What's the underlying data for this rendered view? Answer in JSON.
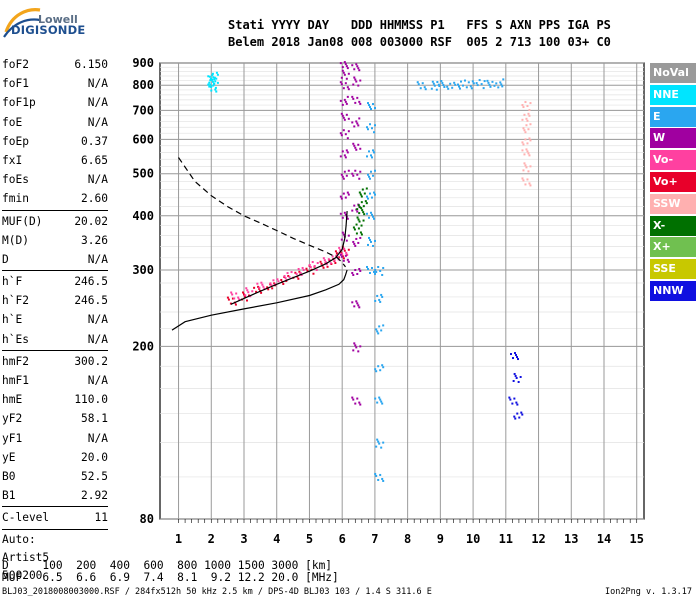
{
  "logo": {
    "brand": "Lowell",
    "product": "DIGISONDE"
  },
  "header": {
    "line1": "Stati YYYY DAY   DDD HHMMSS P1   FFS S AXN PPS IGA PS",
    "line2": "Belem 2018 Jan08 008 003000 RSF  005 2 713 100 03+ C0"
  },
  "params": {
    "group1": [
      {
        "k": "foF2",
        "v": "6.150"
      },
      {
        "k": "foF1",
        "v": "N/A"
      },
      {
        "k": "foF1p",
        "v": "N/A"
      },
      {
        "k": "foE",
        "v": "N/A"
      },
      {
        "k": "foEp",
        "v": "0.37"
      },
      {
        "k": "fxI",
        "v": "6.65"
      },
      {
        "k": "foEs",
        "v": "N/A"
      },
      {
        "k": "fmin",
        "v": "2.60"
      }
    ],
    "group2": [
      {
        "k": "MUF(D)",
        "v": "20.02"
      },
      {
        "k": "M(D)",
        "v": "3.26"
      },
      {
        "k": "D",
        "v": "N/A"
      }
    ],
    "group3": [
      {
        "k": "h`F",
        "v": "246.5"
      },
      {
        "k": "h`F2",
        "v": "246.5"
      },
      {
        "k": "h`E",
        "v": "N/A"
      },
      {
        "k": "h`Es",
        "v": "N/A"
      }
    ],
    "group4": [
      {
        "k": "hmF2",
        "v": "300.2"
      },
      {
        "k": "hmF1",
        "v": "N/A"
      },
      {
        "k": "hmE",
        "v": "110.0"
      },
      {
        "k": "yF2",
        "v": "58.1"
      },
      {
        "k": "yF1",
        "v": "N/A"
      },
      {
        "k": "yE",
        "v": "20.0"
      },
      {
        "k": "B0",
        "v": "52.5"
      },
      {
        "k": "B1",
        "v": "2.92"
      }
    ],
    "clevel": {
      "k": "C-level",
      "v": "11"
    },
    "auto": [
      "Auto:",
      "Artist5",
      "500200"
    ]
  },
  "legend": [
    {
      "label": "NoVal",
      "color": "#9a9a9a"
    },
    {
      "label": "NNE",
      "color": "#00e5ff"
    },
    {
      "label": "E",
      "color": "#2aa6f0"
    },
    {
      "label": "W",
      "color": "#a000a0"
    },
    {
      "label": "Vo-",
      "color": "#ff40a0"
    },
    {
      "label": "Vo+",
      "color": "#e8002a"
    },
    {
      "label": "SSW",
      "color": "#ffb0b0"
    },
    {
      "label": "X-",
      "color": "#007000"
    },
    {
      "label": "X+",
      "color": "#70c050"
    },
    {
      "label": "SSE",
      "color": "#c8c800"
    },
    {
      "label": "NNW",
      "color": "#1010e0"
    }
  ],
  "bottom": {
    "d_row": "D     100  200  400  600  800 1000 1500 3000 [km]",
    "muf_row": "MUF   6.5  6.6  6.9  7.4  8.1  9.2 12.2 20.0 [MHz]"
  },
  "footer": {
    "left": "BLJ03_2018008003000.RSF / 284fx512h 50 kHz 2.5 km / DPS-4D BLJ03 103 / 1.4 S 311.6 E",
    "right": "Ion2Png v. 1.3.17"
  },
  "chart_data": {
    "type": "scatter",
    "title": "",
    "xlabel": "",
    "ylabel": "",
    "xlim": [
      0.8,
      15.1
    ],
    "ylim": [
      80,
      900
    ],
    "y_scale": "log",
    "grid": true,
    "x_ticks": [
      1,
      2,
      3,
      4,
      5,
      6,
      7,
      8,
      9,
      10,
      11,
      12,
      13,
      14,
      15
    ],
    "y_ticks": [
      80,
      200,
      300,
      400,
      500,
      600,
      700,
      800,
      900
    ],
    "traces": [
      {
        "name": "virtual height profile (dashed)",
        "style": "dashed",
        "color": "#000000",
        "x": [
          1.0,
          1.5,
          2.0,
          2.5,
          3.0,
          3.5,
          4.0,
          4.5,
          5.0,
          5.5,
          5.85,
          6.0,
          6.1
        ],
        "y": [
          545,
          480,
          445,
          420,
          400,
          385,
          370,
          355,
          342,
          330,
          320,
          312,
          305
        ]
      },
      {
        "name": "virtual height trace (solid upper)",
        "style": "solid",
        "color": "#000000",
        "x": [
          2.6,
          3.0,
          3.5,
          4.0,
          4.5,
          5.0,
          5.5,
          5.8,
          6.0,
          6.08,
          6.12,
          6.15
        ],
        "y": [
          250,
          258,
          268,
          278,
          288,
          298,
          310,
          320,
          335,
          355,
          380,
          410
        ]
      },
      {
        "name": "true height profile (solid lower)",
        "style": "solid",
        "color": "#000000",
        "x": [
          0.8,
          1.2,
          2.0,
          3.0,
          4.0,
          5.0,
          5.5,
          5.9,
          6.05,
          6.1,
          6.15
        ],
        "y": [
          218,
          228,
          236,
          244,
          252,
          262,
          270,
          278,
          285,
          292,
          300
        ]
      }
    ],
    "echo_clusters": [
      {
        "color": "#e8002a",
        "x": [
          2.6,
          3.0,
          3.4,
          3.8,
          4.2,
          4.6,
          5.0,
          5.4,
          5.7,
          5.9,
          6.05
        ],
        "y": [
          255,
          262,
          270,
          278,
          286,
          294,
          302,
          310,
          318,
          326,
          334
        ]
      },
      {
        "color": "#ff40a0",
        "x": [
          2.7,
          3.1,
          3.5,
          3.9,
          4.3,
          4.7,
          5.1,
          5.5,
          5.8,
          6.0
        ],
        "y": [
          262,
          268,
          276,
          284,
          292,
          300,
          308,
          316,
          324,
          332
        ]
      },
      {
        "color": "#a000a0",
        "x": [
          6.05,
          6.05,
          6.05,
          6.05,
          6.05,
          6.05,
          6.05,
          6.05,
          6.05,
          6.05,
          6.05,
          6.05
        ],
        "y": [
          320,
          360,
          400,
          450,
          500,
          560,
          620,
          680,
          740,
          800,
          850,
          890
        ]
      },
      {
        "color": "#a000a0",
        "x": [
          6.4,
          6.4,
          6.4,
          6.4,
          6.4,
          6.4,
          6.4,
          6.4,
          6.4,
          6.4,
          6.4,
          6.4
        ],
        "y": [
          150,
          200,
          250,
          300,
          350,
          420,
          500,
          580,
          660,
          740,
          820,
          880
        ]
      },
      {
        "color": "#2aa6f0",
        "x": [
          8.4,
          8.8,
          9.0,
          9.3,
          9.6,
          9.9,
          10.2,
          10.5,
          10.8
        ],
        "y": [
          800,
          802,
          805,
          806,
          807,
          808,
          809,
          810,
          812
        ]
      },
      {
        "color": "#2aa6f0",
        "x": [
          6.85,
          6.85,
          6.85,
          6.85,
          6.85,
          6.85,
          6.85,
          6.85
        ],
        "y": [
          300,
          350,
          400,
          450,
          500,
          560,
          640,
          720
        ]
      },
      {
        "color": "#2aa6f0",
        "x": [
          7.1,
          7.1,
          7.1,
          7.1,
          7.1,
          7.1,
          7.1
        ],
        "y": [
          100,
          120,
          150,
          180,
          220,
          260,
          300
        ]
      },
      {
        "color": "#007000",
        "x": [
          6.45,
          6.5,
          6.55,
          6.6,
          6.6
        ],
        "y": [
          370,
          390,
          410,
          430,
          455
        ]
      },
      {
        "color": "#ffb0b0",
        "x": [
          11.6,
          11.6,
          11.6,
          11.6,
          11.6,
          11.6,
          11.6
        ],
        "y": [
          480,
          520,
          560,
          600,
          640,
          680,
          720
        ]
      },
      {
        "color": "#00e5ff",
        "x": [
          2.0,
          2.05,
          2.0,
          2.05,
          2.0
        ],
        "y": [
          790,
          810,
          830,
          850,
          815
        ]
      },
      {
        "color": "#1010e0",
        "x": [
          11.2,
          11.3,
          11.25,
          11.35
        ],
        "y": [
          150,
          170,
          190,
          140
        ]
      }
    ]
  }
}
